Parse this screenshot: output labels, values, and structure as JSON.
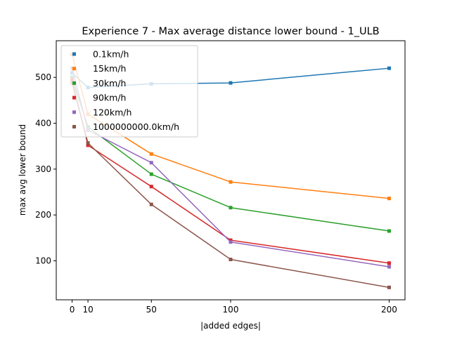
{
  "chart_data": {
    "type": "line",
    "title": "Experience 7 - Max average distance lower bound - 1_ULB",
    "xlabel": "|added edges|",
    "ylabel": "max avg lower bound",
    "x": [
      0,
      10,
      50,
      100,
      200
    ],
    "x_ticks": [
      0,
      10,
      50,
      100,
      200
    ],
    "y_ticks": [
      100,
      200,
      300,
      400,
      500
    ],
    "xlim": [
      -10,
      210
    ],
    "ylim": [
      15,
      580
    ],
    "grid": false,
    "legend_position": "upper-left",
    "series": [
      {
        "name": "0.1km/h",
        "color": "#1f77b4",
        "values": [
          510,
          478,
          486,
          488,
          520
        ]
      },
      {
        "name": "15km/h",
        "color": "#ff7f0e",
        "values": [
          550,
          420,
          333,
          272,
          236
        ]
      },
      {
        "name": "30km/h",
        "color": "#2ca02c",
        "values": [
          500,
          392,
          289,
          216,
          165
        ]
      },
      {
        "name": "90km/h",
        "color": "#d62728",
        "values": [
          495,
          352,
          262,
          145,
          95
        ]
      },
      {
        "name": "120km/h",
        "color": "#9467bd",
        "values": [
          520,
          385,
          314,
          141,
          87
        ]
      },
      {
        "name": "1000000000.0km/h",
        "color": "#8c564b",
        "values": [
          488,
          357,
          223,
          103,
          42
        ]
      }
    ]
  }
}
